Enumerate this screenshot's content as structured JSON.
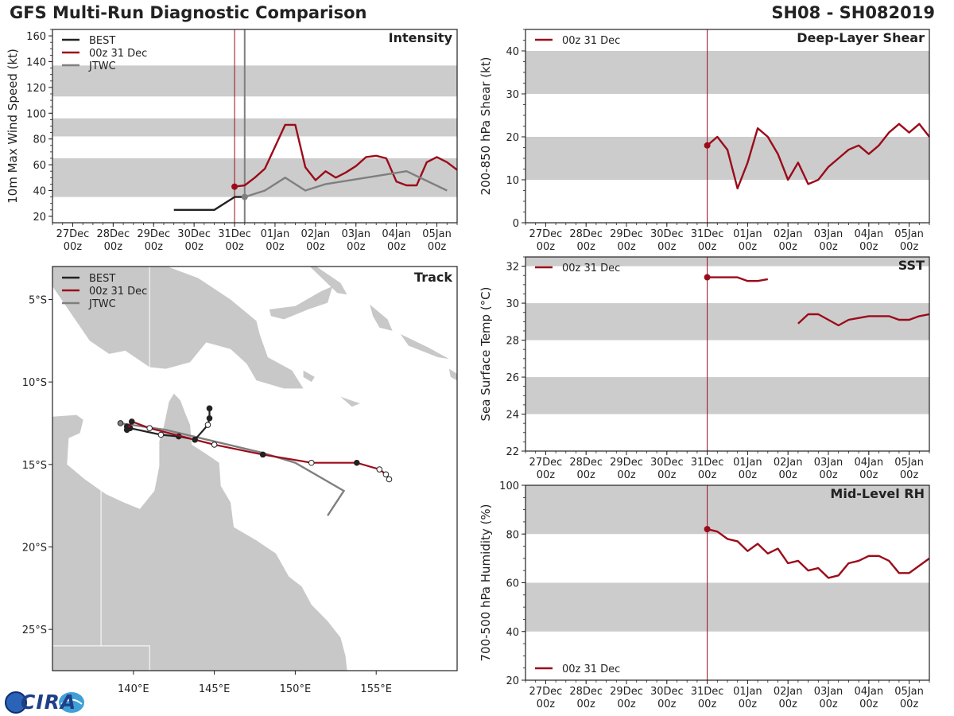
{
  "header": {
    "left_title": "GFS Multi-Run Diagnostic Comparison",
    "right_title": "SH08 - SH082019"
  },
  "logo": {
    "text": "CIRA"
  },
  "colors": {
    "best": "#222222",
    "gfs": "#9b0b1a",
    "jtwc": "#7f7f7f",
    "band": "#cccccc",
    "land": "#c8c8c8",
    "vline_init": "#9b0b1a",
    "vline_jtwc": "#7f7f7f"
  },
  "time_axis": {
    "ticks": [
      {
        "label": "27Dec",
        "sub": "00z"
      },
      {
        "label": "28Dec",
        "sub": "00z"
      },
      {
        "label": "29Dec",
        "sub": "00z"
      },
      {
        "label": "30Dec",
        "sub": "00z"
      },
      {
        "label": "31Dec",
        "sub": "00z"
      },
      {
        "label": "01Jan",
        "sub": "00z"
      },
      {
        "label": "02Jan",
        "sub": "00z"
      },
      {
        "label": "03Jan",
        "sub": "00z"
      },
      {
        "label": "04Jan",
        "sub": "00z"
      },
      {
        "label": "05Jan",
        "sub": "00z"
      }
    ],
    "range_days": [
      -0.5,
      9.5
    ],
    "init_day": 4.0,
    "jtwc_day": 4.25
  },
  "chart_data": [
    {
      "id": "intensity",
      "type": "line",
      "title": "Intensity",
      "ylabel": "10m Max Wind Speed (kt)",
      "ylim": [
        15,
        165
      ],
      "yticks": [
        20,
        40,
        60,
        80,
        100,
        120,
        140,
        160
      ],
      "bands": [
        [
          35,
          65
        ],
        [
          82,
          96
        ],
        [
          113,
          137
        ]
      ],
      "legend": [
        "BEST",
        "00z 31 Dec",
        "JTWC"
      ],
      "series": [
        {
          "name": "BEST",
          "x": [
            2.5,
            3.0,
            3.5,
            4.0,
            4.25
          ],
          "y": [
            25,
            25,
            25,
            35,
            35
          ]
        },
        {
          "name": "00z 31 Dec",
          "x": [
            4.0,
            4.25,
            4.5,
            4.75,
            5.0,
            5.25,
            5.5,
            5.75,
            6.0,
            6.25,
            6.5,
            6.75,
            7.0,
            7.25,
            7.5,
            7.75,
            8.0,
            8.25,
            8.5,
            8.75,
            9.0,
            9.25,
            9.5
          ],
          "y": [
            43,
            44,
            50,
            57,
            74,
            91,
            91,
            58,
            48,
            55,
            50,
            54,
            59,
            66,
            67,
            65,
            47,
            44,
            44,
            62,
            66,
            62,
            56
          ]
        },
        {
          "name": "JTWC",
          "x": [
            4.25,
            4.75,
            5.25,
            5.75,
            6.25,
            7.25,
            8.25,
            9.25
          ],
          "y": [
            35,
            40,
            50,
            40,
            45,
            50,
            55,
            40
          ]
        }
      ]
    },
    {
      "id": "shear",
      "type": "line",
      "title": "Deep-Layer Shear",
      "ylabel": "200-850 hPa Shear (kt)",
      "ylim": [
        0,
        45
      ],
      "yticks": [
        0,
        10,
        20,
        30,
        40
      ],
      "bands": [
        [
          10,
          20
        ],
        [
          30,
          40
        ]
      ],
      "legend": [
        "00z 31 Dec"
      ],
      "series": [
        {
          "name": "00z 31 Dec",
          "x": [
            4.0,
            4.25,
            4.5,
            4.75,
            5.0,
            5.25,
            5.5,
            5.75,
            6.0,
            6.25,
            6.5,
            6.75,
            7.0,
            7.25,
            7.5,
            7.75,
            8.0,
            8.25,
            8.5,
            8.75,
            9.0,
            9.25,
            9.5
          ],
          "y": [
            18,
            20,
            17,
            8,
            14,
            22,
            20,
            16,
            10,
            14,
            9,
            10,
            13,
            15,
            17,
            18,
            16,
            18,
            21,
            23,
            21,
            23,
            20
          ]
        }
      ]
    },
    {
      "id": "sst",
      "type": "line",
      "title": "SST",
      "ylabel": "Sea Surface Temp (°C)",
      "ylim": [
        22,
        32.5
      ],
      "yticks": [
        22,
        24,
        26,
        28,
        30,
        32
      ],
      "bands": [
        [
          24,
          26
        ],
        [
          28,
          30
        ],
        [
          32,
          32.5
        ]
      ],
      "legend": [
        "00z 31 Dec"
      ],
      "series": [
        {
          "name": "00z 31 Dec",
          "x": [
            4.0,
            4.25,
            4.5,
            4.75,
            5.0,
            5.25,
            5.5
          ],
          "y": [
            31.4,
            31.4,
            31.4,
            31.4,
            31.2,
            31.2,
            31.3
          ]
        },
        {
          "name": "00z 31 Dec",
          "x": [
            6.25,
            6.5,
            6.75,
            7.0,
            7.25,
            7.5,
            7.75,
            8.0,
            8.25,
            8.5,
            8.75,
            9.0,
            9.25,
            9.5
          ],
          "y": [
            28.9,
            29.4,
            29.4,
            29.1,
            28.8,
            29.1,
            29.2,
            29.3,
            29.3,
            29.3,
            29.1,
            29.1,
            29.3,
            29.4
          ]
        }
      ]
    },
    {
      "id": "rh",
      "type": "line",
      "title": "Mid-Level RH",
      "ylabel": "700-500 hPa Humidity (%)",
      "ylim": [
        20,
        100
      ],
      "yticks": [
        20,
        40,
        60,
        80,
        100
      ],
      "bands": [
        [
          40,
          60
        ],
        [
          80,
          100
        ]
      ],
      "legend": [
        "00z 31 Dec"
      ],
      "series": [
        {
          "name": "00z 31 Dec",
          "x": [
            4.0,
            4.25,
            4.5,
            4.75,
            5.0,
            5.25,
            5.5,
            5.75,
            6.0,
            6.25,
            6.5,
            6.75,
            7.0,
            7.25,
            7.5,
            7.75,
            8.0,
            8.25,
            8.5,
            8.75,
            9.0,
            9.25,
            9.5
          ],
          "y": [
            82,
            81,
            78,
            77,
            73,
            76,
            72,
            74,
            68,
            69,
            65,
            66,
            62,
            63,
            68,
            69,
            71,
            71,
            69,
            64,
            64,
            67,
            70
          ]
        }
      ]
    },
    {
      "id": "track",
      "type": "map",
      "title": "Track",
      "legend": [
        "BEST",
        "00z 31 Dec",
        "JTWC"
      ],
      "xlim": [
        135,
        160
      ],
      "ylim": [
        -27.5,
        -3
      ],
      "xticks": [
        140,
        145,
        150,
        155
      ],
      "xtick_labels": [
        "140°E",
        "145°E",
        "150°E",
        "155°E"
      ],
      "yticks": [
        -5,
        -10,
        -15,
        -20,
        -25
      ],
      "ytick_labels": [
        "5°S",
        "10°S",
        "15°S",
        "20°S",
        "25°S"
      ],
      "series": [
        {
          "name": "BEST",
          "lon": [
            144.7,
            144.7,
            144.6,
            143.8,
            142.8,
            141.7,
            139.8,
            139.6
          ],
          "lat": [
            -11.6,
            -12.2,
            -12.6,
            -13.5,
            -13.3,
            -13.2,
            -12.8,
            -12.7
          ],
          "markers_filled": [
            true,
            true,
            false,
            true,
            true,
            false,
            true,
            true
          ]
        },
        {
          "name": "00z 31 Dec",
          "lon": [
            155.8,
            155.6,
            155.2,
            153.8,
            151.0,
            148.0,
            145.0,
            143.8,
            141.0,
            139.9,
            139.6
          ],
          "lat": [
            -15.9,
            -15.6,
            -15.3,
            -14.9,
            -14.9,
            -14.4,
            -13.8,
            -13.5,
            -12.8,
            -12.4,
            -12.9
          ],
          "markers_filled": [
            false,
            false,
            false,
            true,
            false,
            true,
            false,
            true,
            false,
            true,
            true
          ]
        },
        {
          "name": "JTWC",
          "lon": [
            152.0,
            153.0,
            150.0,
            148.0,
            145.0,
            142.0,
            139.2
          ],
          "lat": [
            -18.1,
            -16.6,
            -14.9,
            -14.3,
            -13.6,
            -12.9,
            -12.5
          ],
          "markers_filled": [
            false,
            false,
            false,
            false,
            false,
            false,
            true
          ]
        }
      ]
    }
  ]
}
